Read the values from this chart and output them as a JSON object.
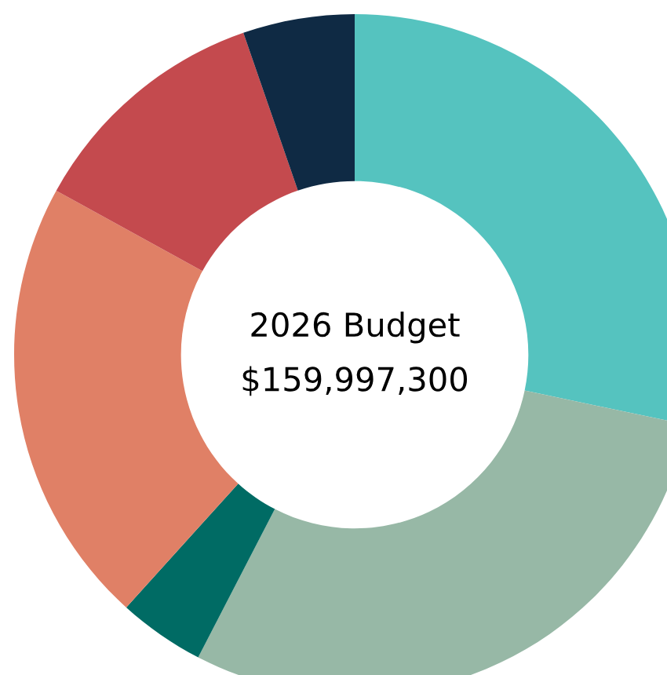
{
  "chart_data": {
    "type": "donut",
    "categories": [
      null,
      null,
      null,
      null,
      null,
      null
    ],
    "values": [
      28.3,
      29.3,
      4.1,
      21.3,
      11.7,
      5.3
    ],
    "colors": [
      "#55c3bf",
      "#97b8a6",
      "#006b64",
      "#e08066",
      "#c44a4e",
      "#0f2a44"
    ],
    "annotations": [
      "2026 Budget",
      "$159,997,300"
    ]
  }
}
